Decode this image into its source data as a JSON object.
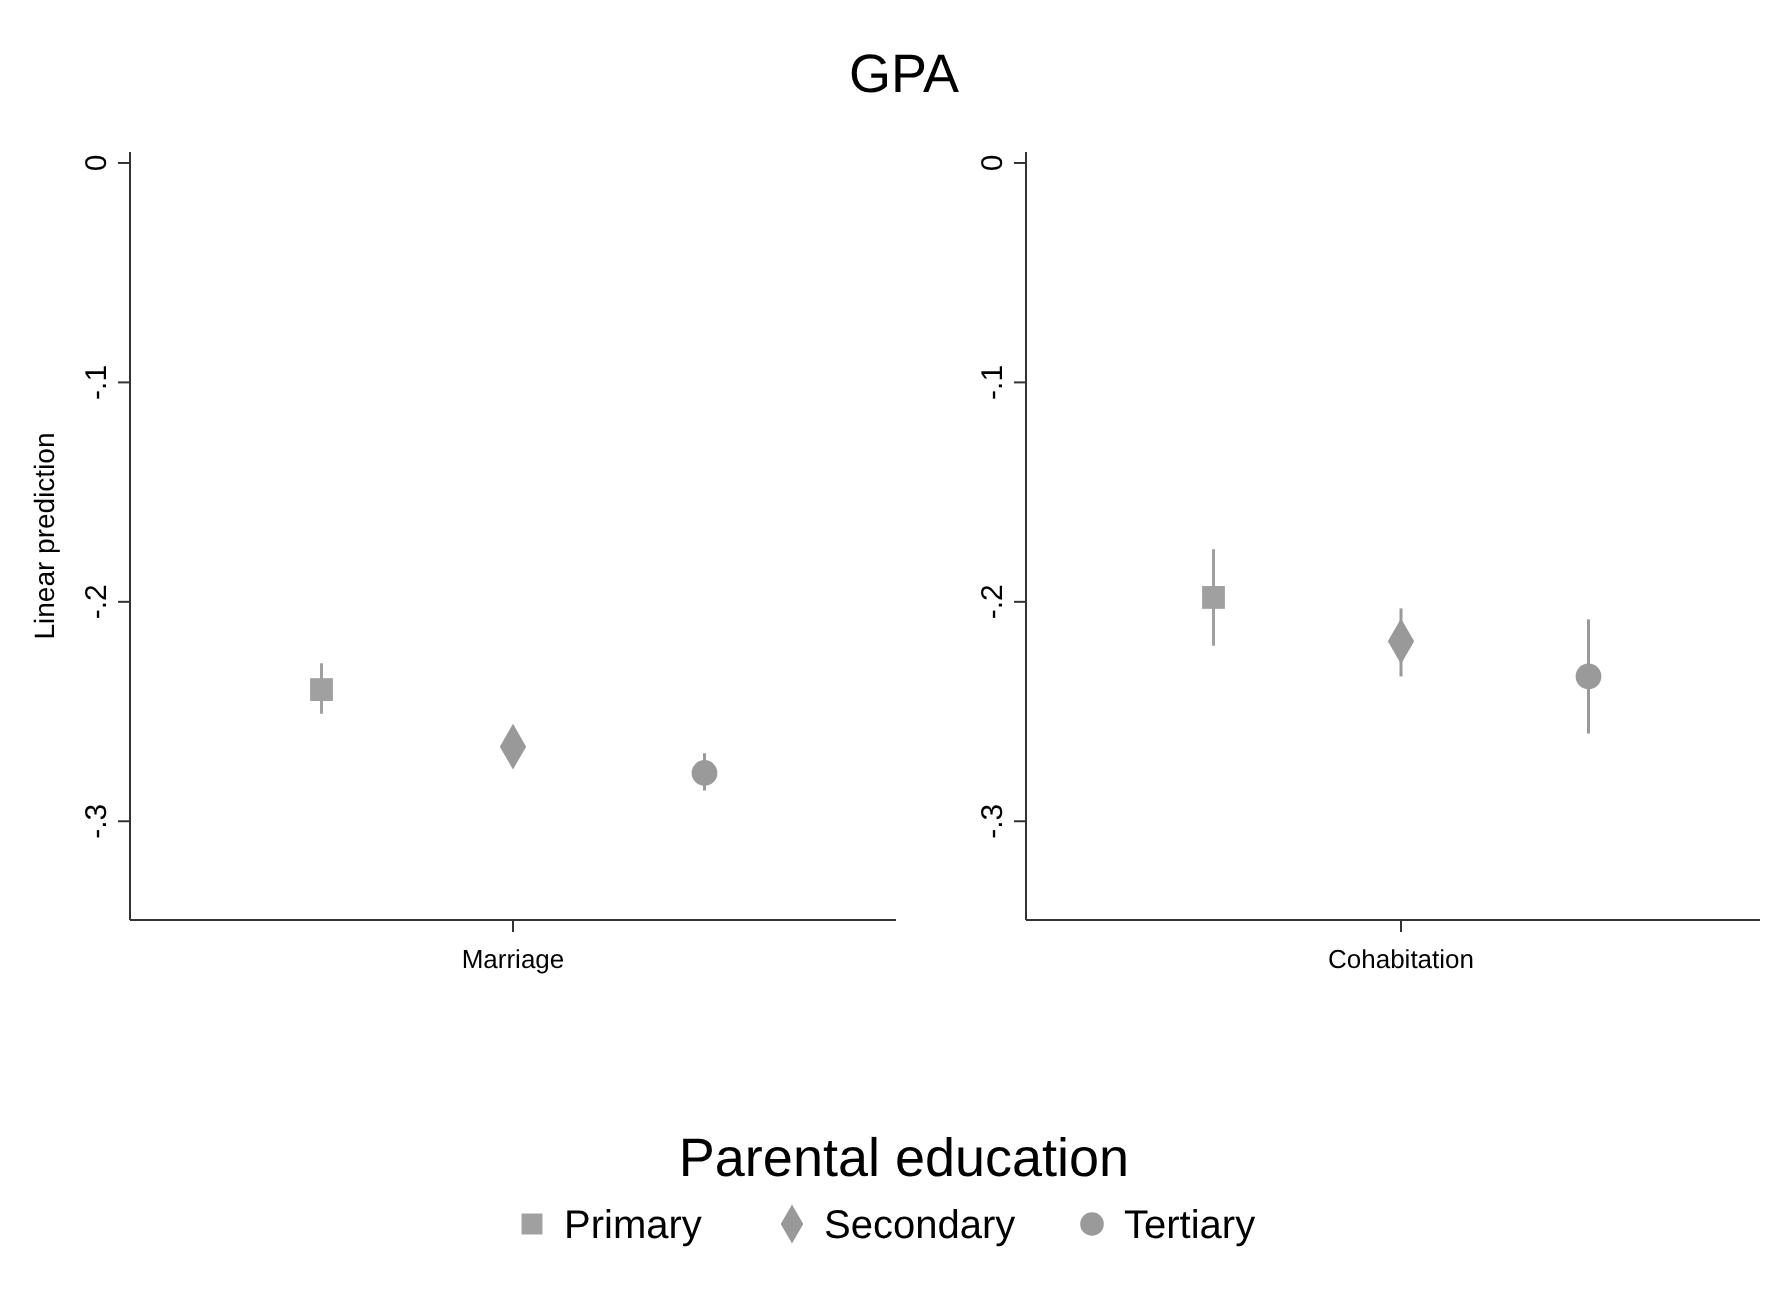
{
  "chart_data": [
    {
      "type": "scatter",
      "title": "GPA",
      "ylabel": "Linear prediction",
      "categories": [
        "Marriage"
      ],
      "ylim": [
        -0.345,
        0.005
      ],
      "yticks": [
        {
          "value": 0,
          "label": "0"
        },
        {
          "value": -0.1,
          "label": "-.1"
        },
        {
          "value": -0.2,
          "label": "-.2"
        },
        {
          "value": -0.3,
          "label": "-.3"
        }
      ],
      "grid": false,
      "legend": "bottom",
      "legend_title": "Parental education",
      "series": [
        {
          "name": "Primary",
          "color": "#a0a0a0",
          "marker": "square",
          "values": [
            -0.24
          ],
          "errors": [
            [
              -0.251,
              -0.228
            ]
          ]
        },
        {
          "name": "Secondary",
          "color": "#999999",
          "marker": "diamond",
          "values": [
            -0.266
          ],
          "errors": [
            [
              -0.272,
              -0.259
            ]
          ]
        },
        {
          "name": "Tertiary",
          "color": "#9a9a9a",
          "marker": "circle",
          "values": [
            -0.278
          ],
          "errors": [
            [
              -0.286,
              -0.269
            ]
          ]
        }
      ]
    },
    {
      "type": "scatter",
      "categories": [
        "Cohabitation"
      ],
      "ylim": [
        -0.345,
        0.005
      ],
      "yticks": [
        {
          "value": 0,
          "label": "0"
        },
        {
          "value": -0.1,
          "label": "-.1"
        },
        {
          "value": -0.2,
          "label": "-.2"
        },
        {
          "value": -0.3,
          "label": "-.3"
        }
      ],
      "grid": false,
      "series": [
        {
          "color": "#a0a0a0",
          "marker": "square",
          "values": [
            -0.198
          ],
          "errors": [
            [
              -0.22,
              -0.176
            ]
          ]
        },
        {
          "color": "#999999",
          "marker": "diamond",
          "values": [
            -0.218
          ],
          "errors": [
            [
              -0.234,
              -0.203
            ]
          ]
        },
        {
          "color": "#9a9a9a",
          "marker": "circle",
          "values": [
            -0.234
          ],
          "errors": [
            [
              -0.26,
              -0.208
            ]
          ]
        }
      ]
    }
  ]
}
